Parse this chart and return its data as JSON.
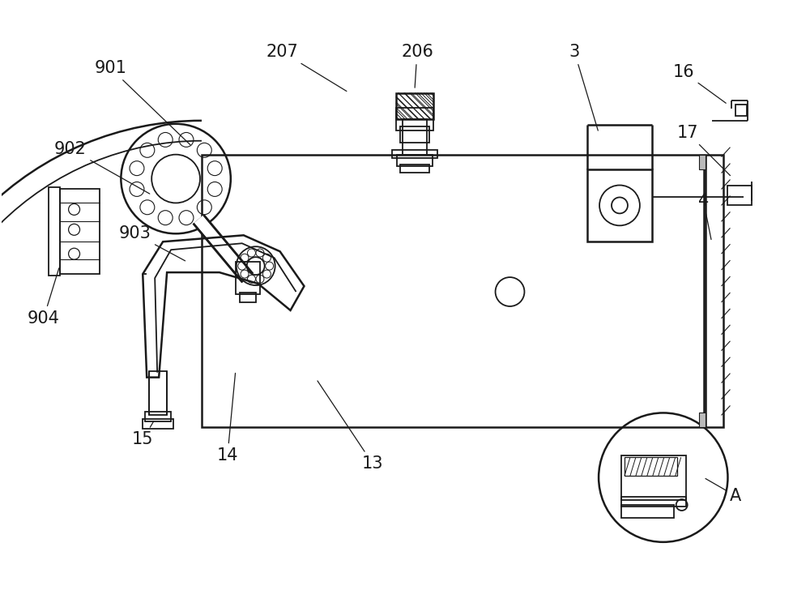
{
  "bg_color": "#ffffff",
  "line_color": "#1a1a1a",
  "lw": 1.3,
  "lw2": 1.8,
  "label_fontsize": 15,
  "figsize": [
    10.0,
    7.28
  ],
  "dpi": 100
}
